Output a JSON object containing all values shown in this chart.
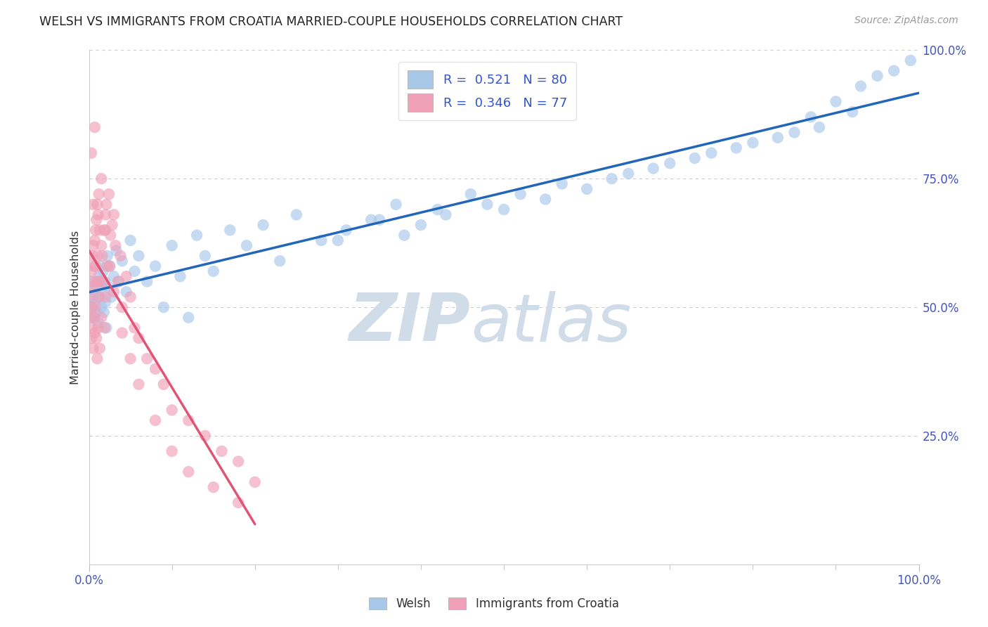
{
  "title": "WELSH VS IMMIGRANTS FROM CROATIA MARRIED-COUPLE HOUSEHOLDS CORRELATION CHART",
  "source_text": "Source: ZipAtlas.com",
  "ylabel": "Married-couple Households",
  "xlim": [
    0,
    100
  ],
  "ylim": [
    0,
    100
  ],
  "welsh_color": "#a8c8ea",
  "croatia_color": "#f0a0b8",
  "trend_blue_color": "#2266bb",
  "trend_pink_color": "#e05575",
  "axis_tick_color": "#4455bb",
  "title_color": "#222222",
  "grid_color": "#cccccc",
  "watermark_color": "#d0dde8",
  "legend_text_color": "#3355cc",
  "legend_line1": "R =  0.521   N = 80",
  "legend_line2": "R =  0.346   N = 77",
  "bottom_legend_welsh": "Welsh",
  "bottom_legend_croatia": "Immigrants from Croatia",
  "welsh_x": [
    0.3,
    0.4,
    0.5,
    0.6,
    0.7,
    0.8,
    0.9,
    1.0,
    1.1,
    1.2,
    1.3,
    1.4,
    1.5,
    1.6,
    1.7,
    1.8,
    1.9,
    2.0,
    2.1,
    2.2,
    2.3,
    2.5,
    2.7,
    3.0,
    3.3,
    3.6,
    4.0,
    4.5,
    5.0,
    5.5,
    6.0,
    7.0,
    8.0,
    9.0,
    10.0,
    11.0,
    12.0,
    13.0,
    14.0,
    15.0,
    17.0,
    19.0,
    21.0,
    23.0,
    25.0,
    28.0,
    31.0,
    34.0,
    37.0,
    40.0,
    43.0,
    46.0,
    50.0,
    55.0,
    60.0,
    65.0,
    70.0,
    75.0,
    80.0,
    85.0,
    87.0,
    90.0,
    93.0,
    95.0,
    97.0,
    99.0,
    30.0,
    35.0,
    38.0,
    42.0,
    48.0,
    52.0,
    57.0,
    63.0,
    68.0,
    73.0,
    78.0,
    83.0,
    88.0,
    92.0
  ],
  "welsh_y": [
    53,
    50,
    52,
    48,
    55,
    51,
    49,
    54,
    47,
    56,
    52,
    58,
    50,
    53,
    57,
    49,
    55,
    51,
    46,
    60,
    54,
    58,
    52,
    56,
    61,
    55,
    59,
    53,
    63,
    57,
    60,
    55,
    58,
    50,
    62,
    56,
    48,
    64,
    60,
    57,
    65,
    62,
    66,
    59,
    68,
    63,
    65,
    67,
    70,
    66,
    68,
    72,
    69,
    71,
    73,
    76,
    78,
    80,
    82,
    84,
    87,
    90,
    93,
    95,
    96,
    98,
    63,
    67,
    64,
    69,
    70,
    72,
    74,
    75,
    77,
    79,
    81,
    83,
    85,
    88
  ],
  "croatia_x": [
    0.1,
    0.2,
    0.2,
    0.3,
    0.3,
    0.3,
    0.4,
    0.4,
    0.5,
    0.5,
    0.5,
    0.6,
    0.6,
    0.7,
    0.7,
    0.8,
    0.8,
    0.9,
    0.9,
    1.0,
    1.0,
    1.0,
    1.1,
    1.1,
    1.2,
    1.2,
    1.3,
    1.3,
    1.5,
    1.5,
    1.6,
    1.7,
    1.8,
    1.9,
    2.0,
    2.0,
    2.1,
    2.2,
    2.4,
    2.6,
    2.8,
    3.0,
    3.2,
    3.5,
    3.8,
    4.0,
    4.5,
    5.0,
    5.5,
    6.0,
    7.0,
    8.0,
    9.0,
    10.0,
    12.0,
    14.0,
    16.0,
    18.0,
    20.0,
    0.8,
    1.0,
    1.2,
    1.5,
    2.0,
    2.5,
    3.0,
    4.0,
    5.0,
    6.0,
    8.0,
    10.0,
    12.0,
    15.0,
    18.0,
    0.3,
    0.5,
    0.7
  ],
  "croatia_y": [
    52,
    55,
    48,
    57,
    50,
    44,
    60,
    46,
    62,
    54,
    42,
    58,
    48,
    63,
    45,
    65,
    50,
    67,
    44,
    70,
    55,
    40,
    68,
    46,
    72,
    52,
    65,
    42,
    75,
    48,
    60,
    55,
    65,
    46,
    68,
    52,
    70,
    58,
    72,
    64,
    66,
    68,
    62,
    55,
    60,
    50,
    56,
    52,
    46,
    44,
    40,
    38,
    35,
    30,
    28,
    25,
    22,
    20,
    16,
    58,
    60,
    55,
    62,
    65,
    58,
    53,
    45,
    40,
    35,
    28,
    22,
    18,
    15,
    12,
    80,
    70,
    85
  ]
}
